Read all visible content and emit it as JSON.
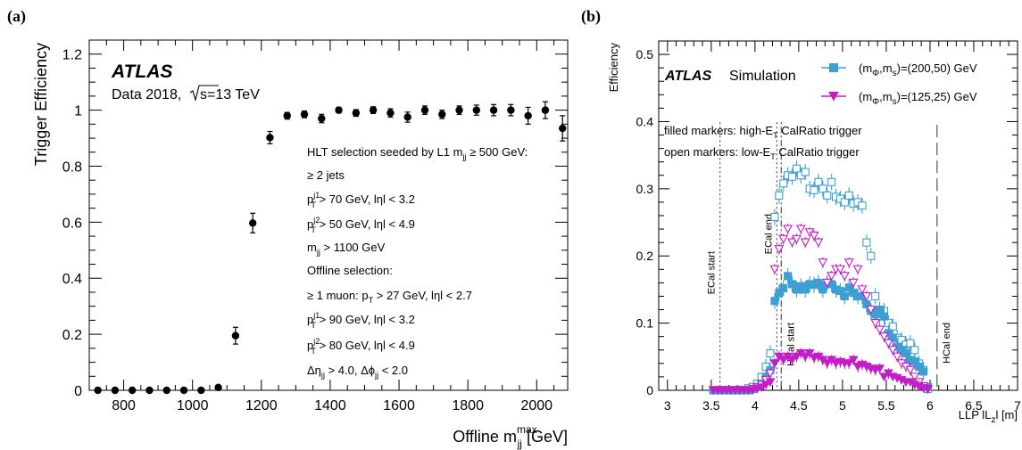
{
  "chart_data": [
    {
      "panel_label": "(a)",
      "type": "scatter",
      "ylabel": "Trigger Efficiency",
      "xlabel": "Offline m",
      "xlabel_sub": "jj",
      "xlabel_sup": "max",
      "xlabel_unit": "[GeV]",
      "xlim": [
        700,
        2090
      ],
      "ylim": [
        0,
        1.25
      ],
      "xticks": [
        800,
        1000,
        1200,
        1400,
        1600,
        1800,
        2000
      ],
      "yticks": [
        0,
        0.2,
        0.4,
        0.6,
        0.8,
        1,
        1.2
      ],
      "ytick_labels": [
        "0",
        "0.2",
        "0.4",
        "0.6",
        "0.8",
        "1",
        "1.2"
      ],
      "atlas_label": "ATLAS",
      "data_label": "Data 2018,",
      "sqrt_label": "s=13 TeV",
      "selection_lines": [
        {
          "t": "HLT selection seeded by L1 m",
          "sub": "jj",
          "tail": " ≥ 500 GeV:"
        },
        {
          "t": "≥ 2 jets"
        },
        {
          "t": "p",
          "sub": "T",
          "sup": "j1",
          "tail": " > 70 GeV, lηl < 3.2"
        },
        {
          "t": "p",
          "sub": "T",
          "sup": "j2",
          "tail": " > 50 GeV, lηl < 4.9"
        },
        {
          "t": "m",
          "sub": "jj",
          "tail": " > 1100 GeV"
        },
        {
          "t": "Offline selection:"
        },
        {
          "t": "≥ 1 muon: p",
          "sub": "T",
          "tail": " > 27 GeV, lηl < 2.7"
        },
        {
          "t": "p",
          "sub": "T",
          "sup": "j1",
          "tail": " > 90 GeV, lηl < 3.2"
        },
        {
          "t": "p",
          "sub": "T",
          "sup": "j2",
          "tail": " > 80 GeV, lηl < 4.9"
        },
        {
          "t": "Δη",
          "sub": "jj",
          "tail": " > 4.0, Δϕ",
          "sub2": "jj",
          "tail2": " < 2.0"
        }
      ],
      "x": [
        725,
        775,
        825,
        875,
        925,
        975,
        1025,
        1075,
        1125,
        1175,
        1225,
        1275,
        1325,
        1375,
        1425,
        1475,
        1525,
        1575,
        1625,
        1675,
        1725,
        1775,
        1825,
        1875,
        1925,
        1975,
        2025,
        2075
      ],
      "y": [
        0,
        0,
        0,
        0,
        0,
        0,
        0,
        0.01,
        0.195,
        0.597,
        0.902,
        0.98,
        0.985,
        0.97,
        1.0,
        0.99,
        1.0,
        0.99,
        0.975,
        1.0,
        0.985,
        1.0,
        1.0,
        1.0,
        1.0,
        0.98,
        1.0,
        0.935
      ],
      "yerr": [
        0,
        0,
        0,
        0,
        0,
        0,
        0,
        0.006,
        0.03,
        0.035,
        0.022,
        0.012,
        0.012,
        0.015,
        0.01,
        0.012,
        0.012,
        0.015,
        0.018,
        0.015,
        0.015,
        0.015,
        0.018,
        0.02,
        0.02,
        0.03,
        0.03,
        0.045
      ]
    },
    {
      "panel_label": "(b)",
      "type": "scatter",
      "ylabel": "Efficiency",
      "xlabel": "LLP lL",
      "xlabel_sub": "z",
      "xlabel_unit": "l [m]",
      "xlim": [
        2.9,
        7.0
      ],
      "ylim": [
        0,
        0.52
      ],
      "xticks": [
        3,
        3.5,
        4,
        4.5,
        5,
        5.5,
        6,
        6.5,
        7
      ],
      "yticks": [
        0,
        0.1,
        0.2,
        0.3,
        0.4,
        0.5
      ],
      "atlas_label": "ATLAS",
      "sim_label": "Simulation",
      "note_filled": {
        "t": "filled markers: high-E",
        "sub": "T",
        "tail": " CalRatio trigger"
      },
      "note_open": {
        "t": "open markers: low-E",
        "sub": "T",
        "tail": " CalRatio trigger"
      },
      "regions": [
        {
          "label": "ECal start",
          "x": 3.6,
          "style": "dotted"
        },
        {
          "label": "ECal end",
          "x": 4.25,
          "style": "dotted"
        },
        {
          "label": "HCal start",
          "x": 4.3,
          "style": "dashdot"
        },
        {
          "label": "HCal end",
          "x": 6.08,
          "style": "dashed"
        }
      ],
      "series": [
        {
          "name": "(m_Φ,m_s)=(200,50) GeV",
          "legend_text": "(m",
          "legend_sub1": "Φ",
          "legend_mid": ",m",
          "legend_sub2": "s",
          "legend_tail": ")=(200,50) GeV",
          "color": "#3d9fd3",
          "marker": "square",
          "x": [
            3.525,
            3.575,
            3.625,
            3.675,
            3.725,
            3.775,
            3.825,
            3.875,
            3.925,
            3.975,
            4.025,
            4.075,
            4.125,
            4.175,
            4.225,
            4.275,
            4.325,
            4.375,
            4.425,
            4.475,
            4.525,
            4.575,
            4.625,
            4.675,
            4.725,
            4.775,
            4.825,
            4.875,
            4.925,
            4.975,
            5.025,
            5.075,
            5.125,
            5.175,
            5.225,
            5.275,
            5.325,
            5.375,
            5.425,
            5.475,
            5.525,
            5.575,
            5.625,
            5.675,
            5.725,
            5.775,
            5.825,
            5.875,
            5.925,
            5.975
          ],
          "filled_y": [
            0,
            0,
            0,
            0,
            0,
            0,
            0,
            0,
            0,
            0.002,
            0.005,
            0.01,
            0.02,
            0.03,
            0.133,
            0.145,
            0.152,
            0.17,
            0.158,
            0.15,
            0.155,
            0.15,
            0.158,
            0.157,
            0.16,
            0.15,
            0.16,
            0.158,
            0.15,
            0.148,
            0.14,
            0.153,
            0.145,
            0.14,
            0.14,
            0.128,
            0.118,
            0.113,
            0.12,
            0.11,
            0.085,
            0.078,
            0.065,
            0.06,
            0.055,
            0.045,
            0.043,
            0.035,
            0.028,
            0.005
          ],
          "open_y": [
            0,
            0,
            0,
            0,
            0,
            0,
            0,
            0,
            0.003,
            0.005,
            0.01,
            0.02,
            0.035,
            0.055,
            0.258,
            0.29,
            0.308,
            0.32,
            0.318,
            0.33,
            0.32,
            0.325,
            0.3,
            0.298,
            0.31,
            0.3,
            0.29,
            0.31,
            0.288,
            0.285,
            0.28,
            0.29,
            0.278,
            0.28,
            0.275,
            0.22,
            0.2,
            0.14,
            0.11,
            0.118,
            0.1,
            0.095,
            0.078,
            0.075,
            0.068,
            0.07,
            0.06,
            0.04,
            0.03,
            0.002
          ]
        },
        {
          "name": "(m_Φ,m_s)=(125,25) GeV",
          "legend_text": "(m",
          "legend_sub1": "Φ",
          "legend_mid": ",m",
          "legend_sub2": "s",
          "legend_tail": ")=(125,25) GeV",
          "color": "#c21ec8",
          "marker": "triangle-down",
          "x": [
            3.525,
            3.575,
            3.625,
            3.675,
            3.725,
            3.775,
            3.825,
            3.875,
            3.925,
            3.975,
            4.025,
            4.075,
            4.125,
            4.175,
            4.225,
            4.275,
            4.325,
            4.375,
            4.425,
            4.475,
            4.525,
            4.575,
            4.625,
            4.675,
            4.725,
            4.775,
            4.825,
            4.875,
            4.925,
            4.975,
            5.025,
            5.075,
            5.125,
            5.175,
            5.225,
            5.275,
            5.325,
            5.375,
            5.425,
            5.475,
            5.525,
            5.575,
            5.625,
            5.675,
            5.725,
            5.775,
            5.825,
            5.875,
            5.925,
            5.975
          ],
          "filled_y": [
            0,
            0,
            0,
            0,
            0,
            0,
            0,
            0,
            0,
            0,
            0.002,
            0.004,
            0.008,
            0.012,
            0.04,
            0.05,
            0.045,
            0.05,
            0.045,
            0.05,
            0.055,
            0.05,
            0.055,
            0.048,
            0.05,
            0.045,
            0.04,
            0.045,
            0.04,
            0.042,
            0.04,
            0.04,
            0.045,
            0.035,
            0.038,
            0.035,
            0.032,
            0.03,
            0.032,
            0.02,
            0.025,
            0.02,
            0.018,
            0.015,
            0.012,
            0.012,
            0.008,
            0.005,
            0.003,
            0.001
          ],
          "open_y": [
            0,
            0,
            0,
            0,
            0,
            0,
            0,
            0,
            0,
            0.002,
            0.004,
            0.008,
            0.015,
            0.025,
            0.18,
            0.21,
            0.225,
            0.24,
            0.22,
            0.225,
            0.24,
            0.22,
            0.235,
            0.23,
            0.22,
            0.19,
            0.16,
            0.17,
            0.18,
            0.18,
            0.17,
            0.19,
            0.16,
            0.18,
            0.15,
            0.14,
            0.12,
            0.1,
            0.09,
            0.08,
            0.07,
            0.06,
            0.05,
            0.04,
            0.035,
            0.03,
            0.02,
            0.012,
            0.006,
            0.002
          ]
        }
      ]
    }
  ]
}
